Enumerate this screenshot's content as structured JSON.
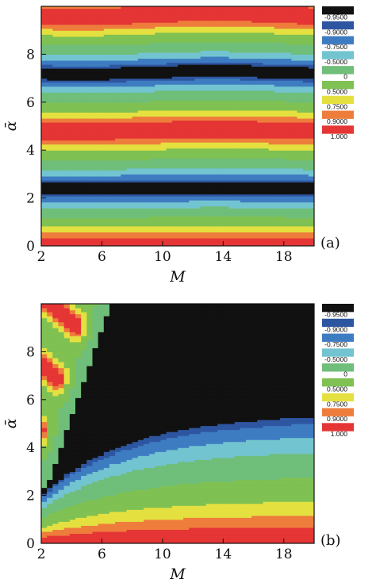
{
  "chart_data": [
    {
      "type": "heatmap",
      "panel_label": "(a)",
      "xlabel": "M",
      "ylabel": "ᾱ",
      "xlim": [
        2,
        20
      ],
      "ylim": [
        0,
        10
      ],
      "x_ticks": [
        "2",
        "6",
        "10",
        "14",
        "18"
      ],
      "y_ticks": [
        "0",
        "2",
        "4",
        "6",
        "8"
      ],
      "colorbar": {
        "colors": [
          "#111111",
          "#2e56a0",
          "#3e7cc2",
          "#72c4d0",
          "#6fbe7a",
          "#7fc152",
          "#e4e040",
          "#ee7d3c",
          "#e53535"
        ],
        "labels": [
          "-0.9500",
          "-0.9000",
          "-0.7500",
          "-0.5000",
          "0",
          "0.5000",
          "0.7500",
          "0.9000",
          "1.000"
        ]
      },
      "pattern": "horizontal bands, value ≈ cos(1.3·ᾱ) with slight wave along M"
    },
    {
      "type": "heatmap",
      "panel_label": "(b)",
      "xlabel": "M",
      "ylabel": "ᾱ",
      "xlim": [
        2,
        20
      ],
      "ylim": [
        0,
        10
      ],
      "x_ticks": [
        "2",
        "6",
        "10",
        "14",
        "18"
      ],
      "y_ticks": [
        "0",
        "2",
        "4",
        "6",
        "8"
      ],
      "colorbar": {
        "colors": [
          "#111111",
          "#2e56a0",
          "#3e7cc2",
          "#72c4d0",
          "#6fbe7a",
          "#7fc152",
          "#e4e040",
          "#ee7d3c",
          "#e53535"
        ],
        "labels": [
          "-0.9500",
          "-0.9000",
          "-0.7500",
          "-0.5000",
          "0",
          "0.5000",
          "0.7500",
          "0.9000",
          "1.000"
        ]
      },
      "pattern": "large black region above a curved boundary rising from ᾱ≈2.2 at M=2 to ᾱ≈5.8 at M=20; green/cyan lobes with red peaks near M≈2–5 at large ᾱ"
    }
  ]
}
